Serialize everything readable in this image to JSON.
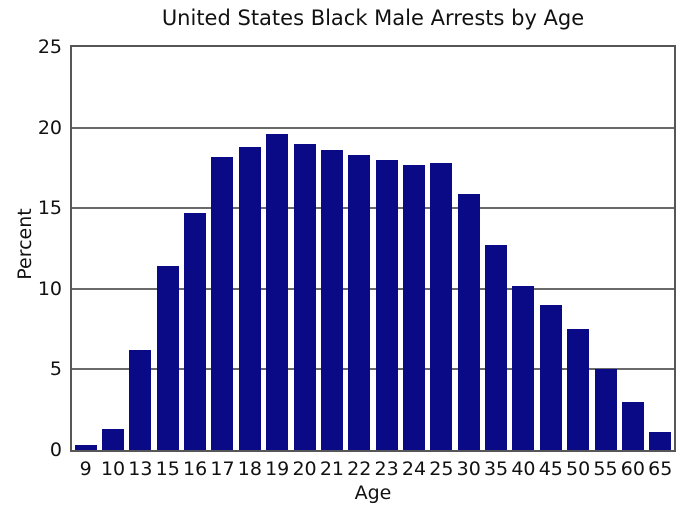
{
  "chart_data": {
    "type": "bar",
    "title": "United States Black Male Arrests by Age",
    "xlabel": "Age",
    "ylabel": "Percent",
    "categories": [
      "9",
      "10",
      "13",
      "15",
      "16",
      "17",
      "18",
      "19",
      "20",
      "21",
      "22",
      "23",
      "24",
      "25",
      "30",
      "35",
      "40",
      "45",
      "50",
      "55",
      "60",
      "65"
    ],
    "values": [
      0.3,
      1.3,
      6.2,
      11.4,
      14.7,
      18.2,
      18.8,
      19.6,
      19.0,
      18.6,
      18.3,
      18.0,
      17.7,
      17.8,
      15.9,
      12.7,
      10.2,
      9.0,
      7.5,
      5.0,
      3.0,
      1.1
    ],
    "ylim": [
      0,
      25
    ],
    "yticks": [
      0,
      5,
      10,
      15,
      20,
      25
    ],
    "grid": "horizontal",
    "legend": "none",
    "colors": {
      "bar": "#0a0a87",
      "axis_border": "#565656",
      "gridline": "#6a6a6a",
      "text": "#111111",
      "background": "#ffffff"
    }
  }
}
